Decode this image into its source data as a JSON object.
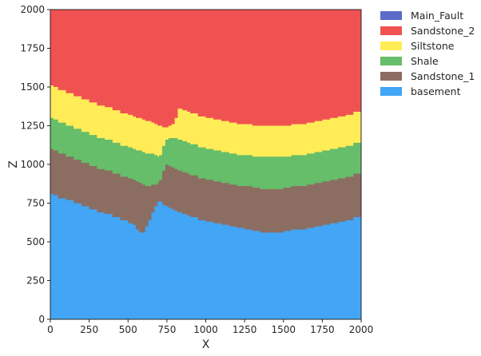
{
  "chart_data": {
    "type": "area",
    "title": "",
    "xlabel": "X",
    "ylabel": "Z",
    "xlim": [
      0,
      2000
    ],
    "ylim": [
      0,
      2000
    ],
    "xticks": [
      0,
      250,
      500,
      750,
      1000,
      1250,
      1500,
      1750,
      2000
    ],
    "yticks": [
      0,
      250,
      500,
      750,
      1000,
      1250,
      1500,
      1750,
      2000
    ],
    "grid": false,
    "legend_position": "outside-top-right",
    "x": [
      0,
      20,
      50,
      100,
      150,
      200,
      250,
      300,
      350,
      400,
      450,
      500,
      530,
      550,
      570,
      590,
      610,
      630,
      650,
      670,
      690,
      700,
      720,
      740,
      760,
      780,
      800,
      820,
      850,
      880,
      900,
      950,
      1000,
      1050,
      1100,
      1150,
      1200,
      1250,
      1300,
      1350,
      1400,
      1450,
      1500,
      1550,
      1600,
      1650,
      1700,
      1750,
      1800,
      1850,
      1900,
      1950,
      2000
    ],
    "series": [
      {
        "name": "Main_Fault",
        "color": "#5b6bc8",
        "top": null
      },
      {
        "name": "Sandstone_2",
        "color": "#f05252",
        "top": [
          2000,
          2000,
          2000,
          2000,
          2000,
          2000,
          2000,
          2000,
          2000,
          2000,
          2000,
          2000,
          2000,
          2000,
          2000,
          2000,
          2000,
          2000,
          2000,
          2000,
          2000,
          2000,
          2000,
          2000,
          2000,
          2000,
          2000,
          2000,
          2000,
          2000,
          2000,
          2000,
          2000,
          2000,
          2000,
          2000,
          2000,
          2000,
          2000,
          2000,
          2000,
          2000,
          2000,
          2000,
          2000,
          2000,
          2000,
          2000,
          2000,
          2000,
          2000,
          2000,
          2000
        ]
      },
      {
        "name": "Siltstone",
        "color": "#ffec57",
        "top": [
          1510,
          1500,
          1480,
          1460,
          1440,
          1420,
          1400,
          1380,
          1370,
          1350,
          1330,
          1320,
          1310,
          1300,
          1300,
          1290,
          1280,
          1280,
          1270,
          1260,
          1250,
          1250,
          1240,
          1240,
          1250,
          1260,
          1300,
          1360,
          1350,
          1340,
          1330,
          1310,
          1300,
          1290,
          1280,
          1270,
          1260,
          1260,
          1250,
          1250,
          1250,
          1250,
          1250,
          1260,
          1260,
          1270,
          1280,
          1290,
          1300,
          1310,
          1320,
          1340,
          1360
        ]
      },
      {
        "name": "Shale",
        "color": "#66bd6a",
        "top": [
          1300,
          1290,
          1270,
          1250,
          1230,
          1210,
          1190,
          1170,
          1160,
          1140,
          1120,
          1110,
          1100,
          1090,
          1090,
          1080,
          1070,
          1070,
          1070,
          1060,
          1050,
          1060,
          1120,
          1160,
          1170,
          1170,
          1170,
          1160,
          1150,
          1140,
          1130,
          1110,
          1100,
          1090,
          1080,
          1070,
          1060,
          1060,
          1050,
          1050,
          1050,
          1050,
          1050,
          1060,
          1060,
          1070,
          1080,
          1090,
          1100,
          1110,
          1120,
          1140,
          1160
        ]
      },
      {
        "name": "Sandstone_1",
        "color": "#8c6d62",
        "top": [
          1100,
          1090,
          1070,
          1050,
          1030,
          1010,
          990,
          970,
          960,
          940,
          920,
          910,
          900,
          890,
          880,
          870,
          860,
          860,
          870,
          870,
          880,
          900,
          960,
          1000,
          990,
          980,
          970,
          960,
          950,
          940,
          930,
          910,
          900,
          890,
          880,
          870,
          860,
          860,
          850,
          840,
          840,
          840,
          850,
          860,
          860,
          870,
          880,
          890,
          900,
          910,
          920,
          940,
          960
        ]
      },
      {
        "name": "basement",
        "color": "#42a5f5",
        "top": [
          810,
          800,
          780,
          770,
          750,
          730,
          710,
          690,
          680,
          660,
          640,
          620,
          610,
          580,
          560,
          560,
          600,
          640,
          690,
          730,
          760,
          760,
          740,
          730,
          720,
          710,
          700,
          690,
          680,
          670,
          660,
          640,
          630,
          620,
          610,
          600,
          590,
          580,
          570,
          560,
          560,
          560,
          570,
          580,
          580,
          590,
          600,
          610,
          620,
          630,
          640,
          660,
          680
        ]
      }
    ]
  }
}
